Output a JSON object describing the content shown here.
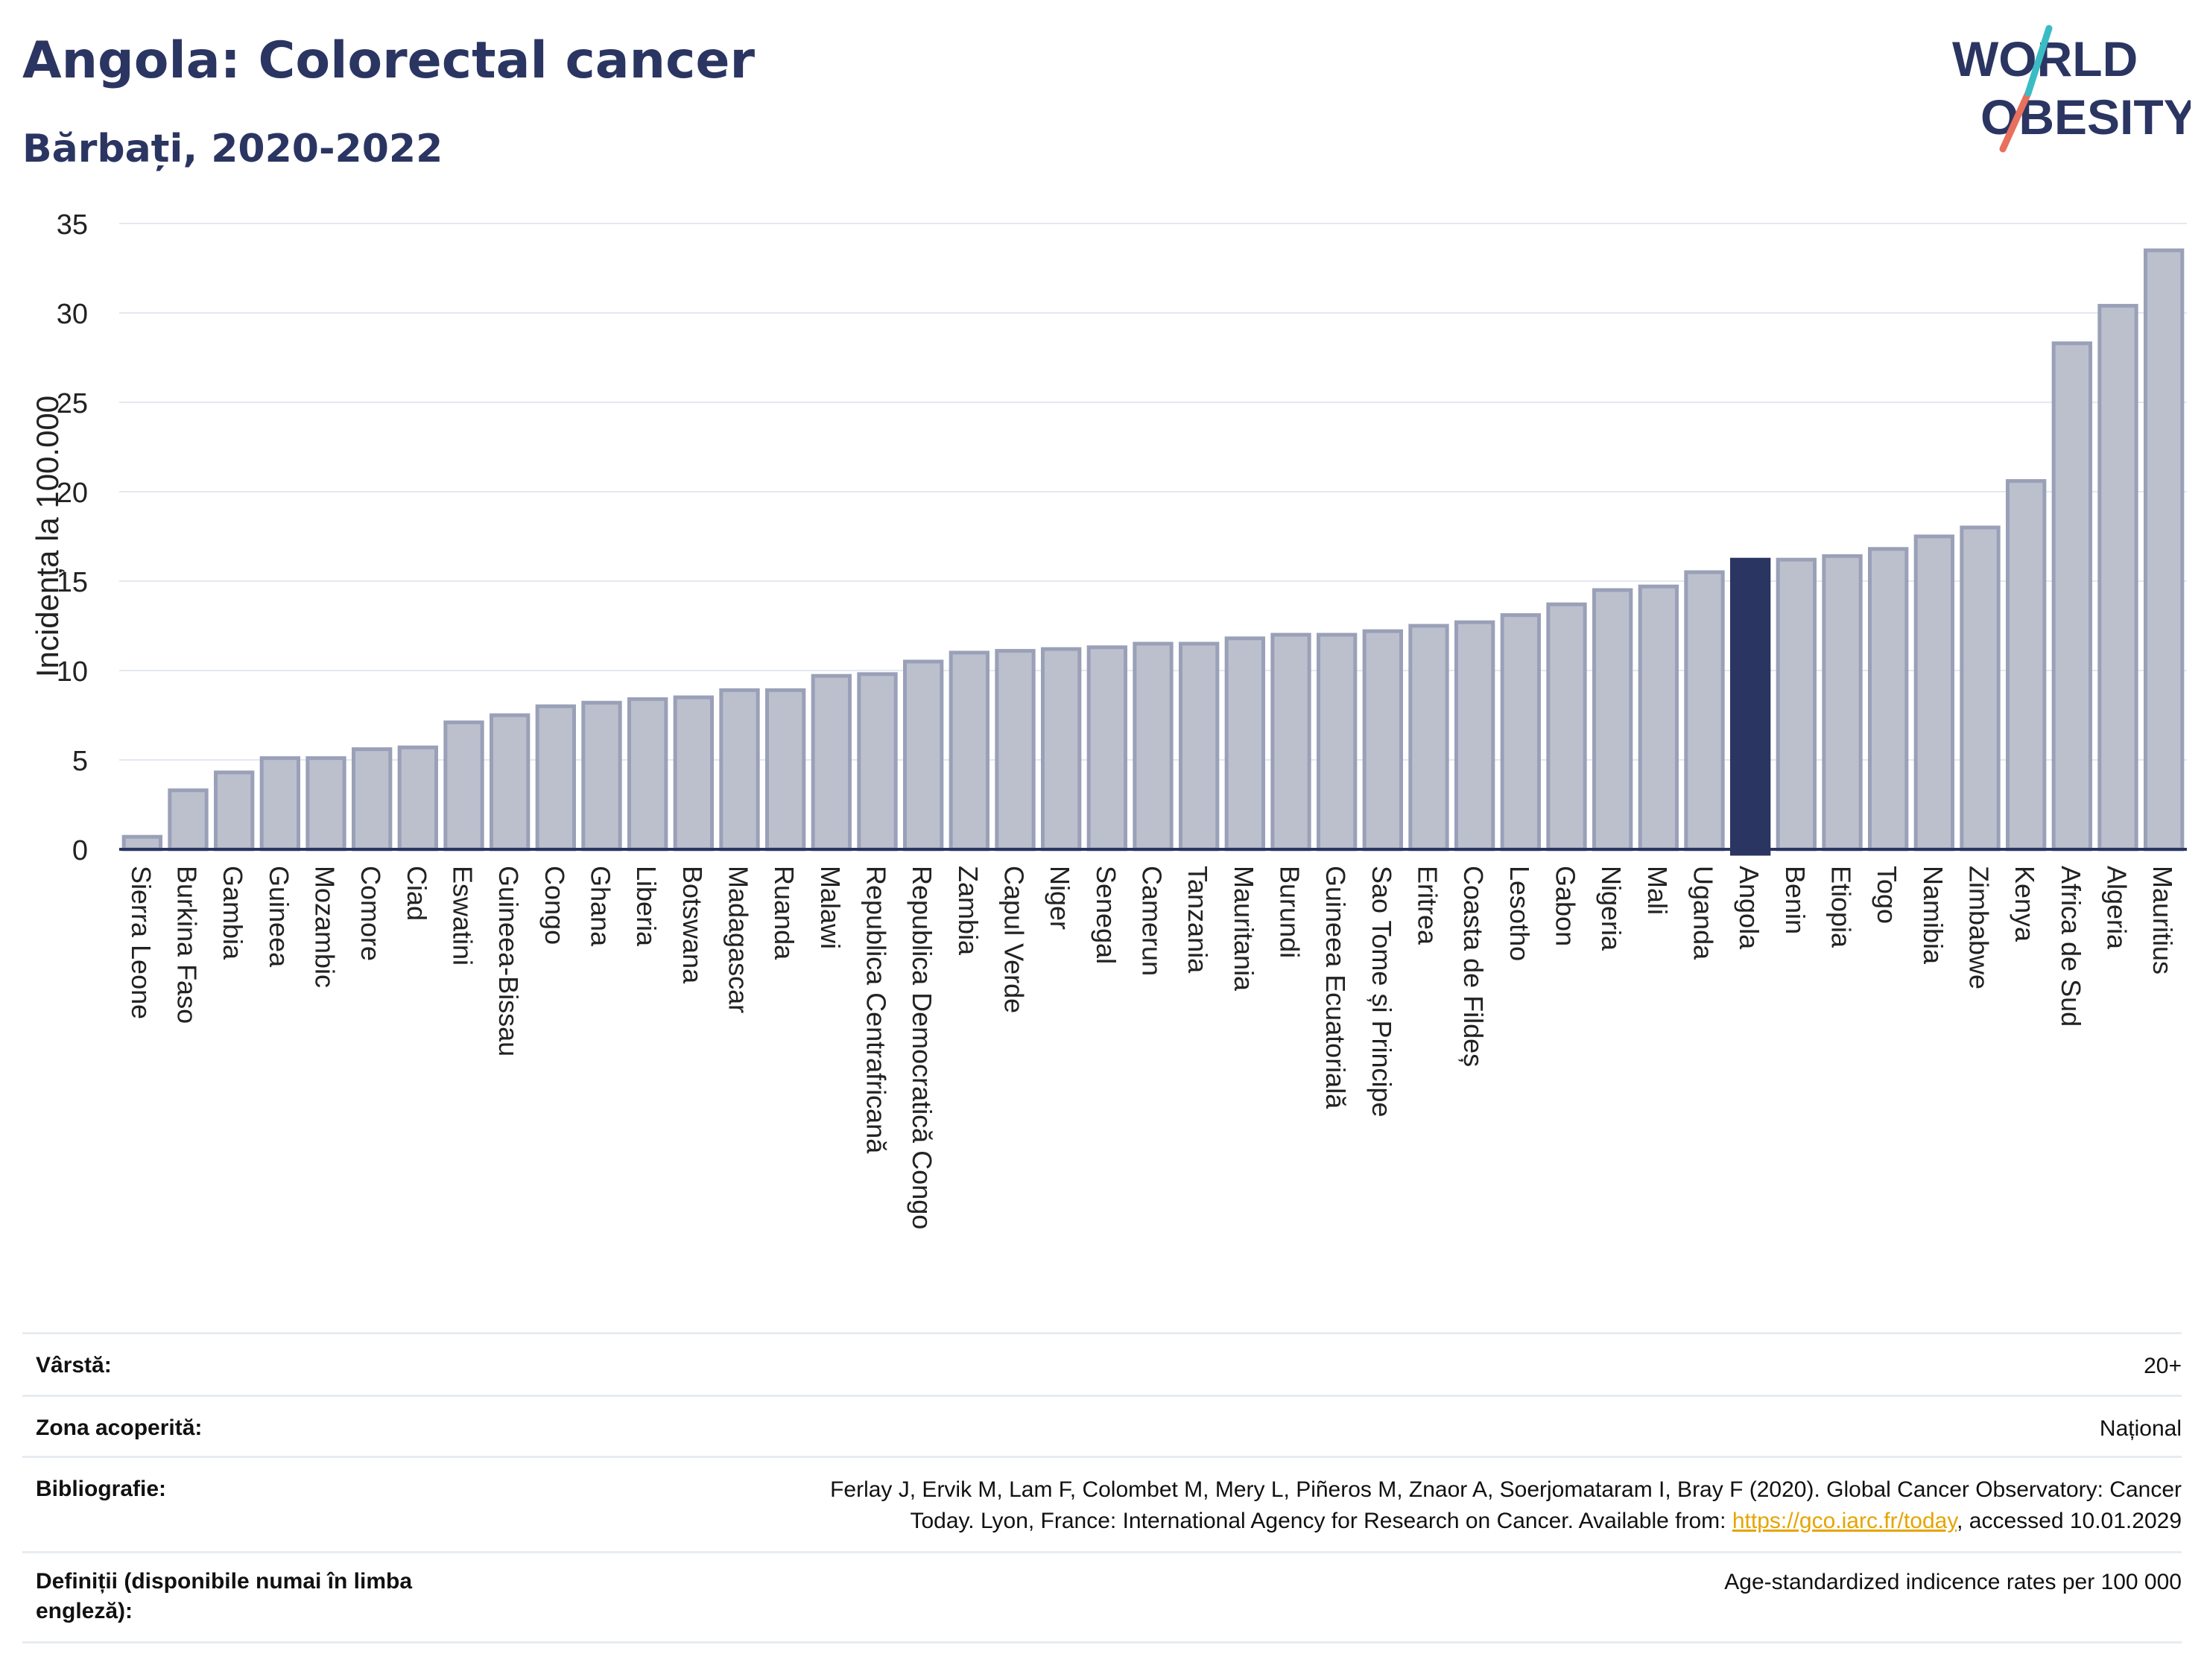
{
  "title": "Angola: Colorectal cancer",
  "subtitle": "Bărbați, 2020-2022",
  "logo": {
    "line1": "WORLD",
    "line2": "OBESITY"
  },
  "colors": {
    "bar_fill": "#bcc0cd",
    "bar_stroke": "#9aa0b7",
    "highlight": "#2b3562",
    "grid": "#e4e8ef",
    "axis": "#2b3562",
    "logo_text": "#2b3562",
    "logo_teal": "#3bbcc4",
    "logo_coral": "#e8705c",
    "link": "#e6a400"
  },
  "chart_data": {
    "type": "bar",
    "title": "",
    "xlabel": "",
    "ylabel": "Incidența la 100.000",
    "ylim": [
      0,
      35
    ],
    "yticks": [
      0,
      5,
      10,
      15,
      20,
      25,
      30,
      35
    ],
    "grid": true,
    "highlight": "Angola",
    "categories": [
      "Sierra Leone",
      "Burkina Faso",
      "Gambia",
      "Guineea",
      "Mozambic",
      "Comore",
      "Ciad",
      "Eswatini",
      "Guineea-Bissau",
      "Congo",
      "Ghana",
      "Liberia",
      "Botswana",
      "Madagascar",
      "Ruanda",
      "Malawi",
      "Republica Centrafricană",
      "Republica Democratică Congo",
      "Zambia",
      "Capul Verde",
      "Niger",
      "Senegal",
      "Camerun",
      "Tanzania",
      "Mauritania",
      "Burundi",
      "Guineea Ecuatorială",
      "Sao Tome și Principe",
      "Eritrea",
      "Coasta de Fildeș",
      "Lesotho",
      "Gabon",
      "Nigeria",
      "Mali",
      "Uganda",
      "Angola",
      "Benin",
      "Etiopia",
      "Togo",
      "Namibia",
      "Zimbabwe",
      "Kenya",
      "Africa de Sud",
      "Algeria",
      "Mauritius"
    ],
    "values": [
      0.7,
      3.3,
      4.3,
      5.1,
      5.1,
      5.6,
      5.7,
      7.1,
      7.5,
      8.0,
      8.2,
      8.4,
      8.5,
      8.9,
      8.9,
      9.7,
      9.8,
      10.5,
      11.0,
      11.1,
      11.2,
      11.3,
      11.5,
      11.5,
      11.8,
      12.0,
      12.0,
      12.2,
      12.5,
      12.7,
      13.1,
      13.7,
      14.5,
      14.7,
      15.5,
      16.2,
      16.2,
      16.4,
      16.8,
      17.5,
      18.0,
      20.6,
      28.3,
      30.4,
      33.5
    ]
  },
  "info": {
    "age_label": "Vârstă:",
    "age_value": "20+",
    "area_label": "Zona acoperită:",
    "area_value": "Național",
    "biblio_label": "Bibliografie:",
    "biblio_text1": "Ferlay J, Ervik M, Lam F, Colombet M, Mery L, Piñeros M, Znaor A, Soerjomataram I, Bray F (2020). Global Cancer Observatory: Cancer",
    "biblio_text2": "Today. Lyon, France: International Agency for Research on Cancer. Available from: ",
    "biblio_link": "https://gco.iarc.fr/today",
    "biblio_text3": ", accessed 10.01.2029",
    "def_label": "Definiții (disponibile numai în limba engleză):",
    "def_value": "Age-standardized indicence rates per 100 000"
  }
}
